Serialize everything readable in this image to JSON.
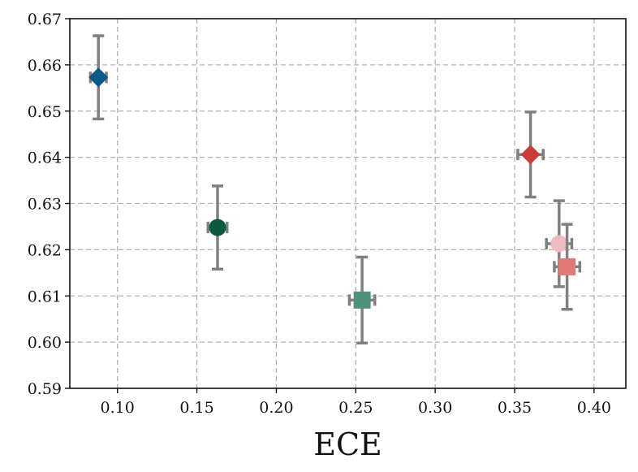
{
  "chart_data": {
    "type": "scatter",
    "title": "",
    "xlabel": "ECE",
    "ylabel": "",
    "xlim": [
      0.07,
      0.42
    ],
    "ylim": [
      0.59,
      0.67
    ],
    "xticks": [
      0.1,
      0.15,
      0.2,
      0.25,
      0.3,
      0.35,
      0.4
    ],
    "xtick_labels": [
      "0.10",
      "0.15",
      "0.20",
      "0.25",
      "0.30",
      "0.35",
      "0.40"
    ],
    "yticks": [
      0.59,
      0.6,
      0.61,
      0.62,
      0.63,
      0.64,
      0.65,
      0.66,
      0.67
    ],
    "ytick_labels": [
      "0.59",
      "0.60",
      "0.61",
      "0.62",
      "0.63",
      "0.64",
      "0.65",
      "0.66",
      "0.67"
    ],
    "grid": true,
    "series": [
      {
        "marker": "diamond",
        "color": "#0b5a8c",
        "x": 0.088,
        "y": 0.6573,
        "xerr": 0.005,
        "yerr": 0.009
      },
      {
        "marker": "circle",
        "color": "#0b5a3e",
        "x": 0.163,
        "y": 0.6248,
        "xerr": 0.006,
        "yerr": 0.009
      },
      {
        "marker": "square",
        "color": "#4f917a",
        "x": 0.254,
        "y": 0.6091,
        "xerr": 0.008,
        "yerr": 0.0093
      },
      {
        "marker": "diamond",
        "color": "#cc3b3c",
        "x": 0.36,
        "y": 0.6406,
        "xerr": 0.008,
        "yerr": 0.0092
      },
      {
        "marker": "circle",
        "color": "#ebbdbf",
        "x": 0.378,
        "y": 0.6213,
        "xerr": 0.008,
        "yerr": 0.0093
      },
      {
        "marker": "square",
        "color": "#e07878",
        "x": 0.383,
        "y": 0.6163,
        "xerr": 0.008,
        "yerr": 0.0092
      }
    ]
  }
}
